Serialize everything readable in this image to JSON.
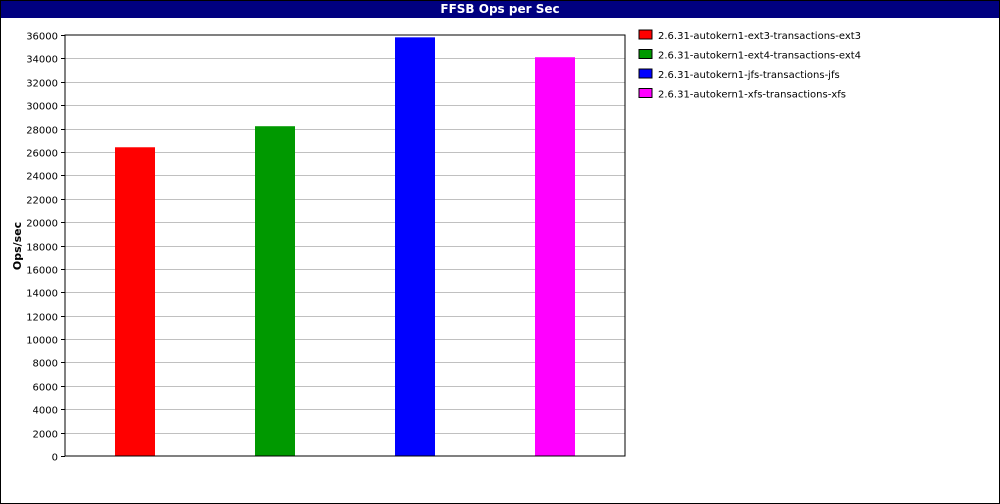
{
  "chart_data": {
    "type": "bar",
    "title": "FFSB Ops per Sec",
    "xlabel": "",
    "ylabel": "Ops/sec",
    "ylim": [
      0,
      36000
    ],
    "ytick_step": 2000,
    "grid": true,
    "legend_position": "right",
    "categories": [
      "2.6.31-autokern1-ext3-transactions-ext3",
      "2.6.31-autokern1-ext4-transactions-ext4",
      "2.6.31-autokern1-jfs-transactions-jfs",
      "2.6.31-autokern1-xfs-transactions-xfs"
    ],
    "values": [
      26400,
      28200,
      35800,
      34100
    ],
    "colors": [
      "#ff0000",
      "#009900",
      "#0000ff",
      "#ff00ff"
    ]
  }
}
